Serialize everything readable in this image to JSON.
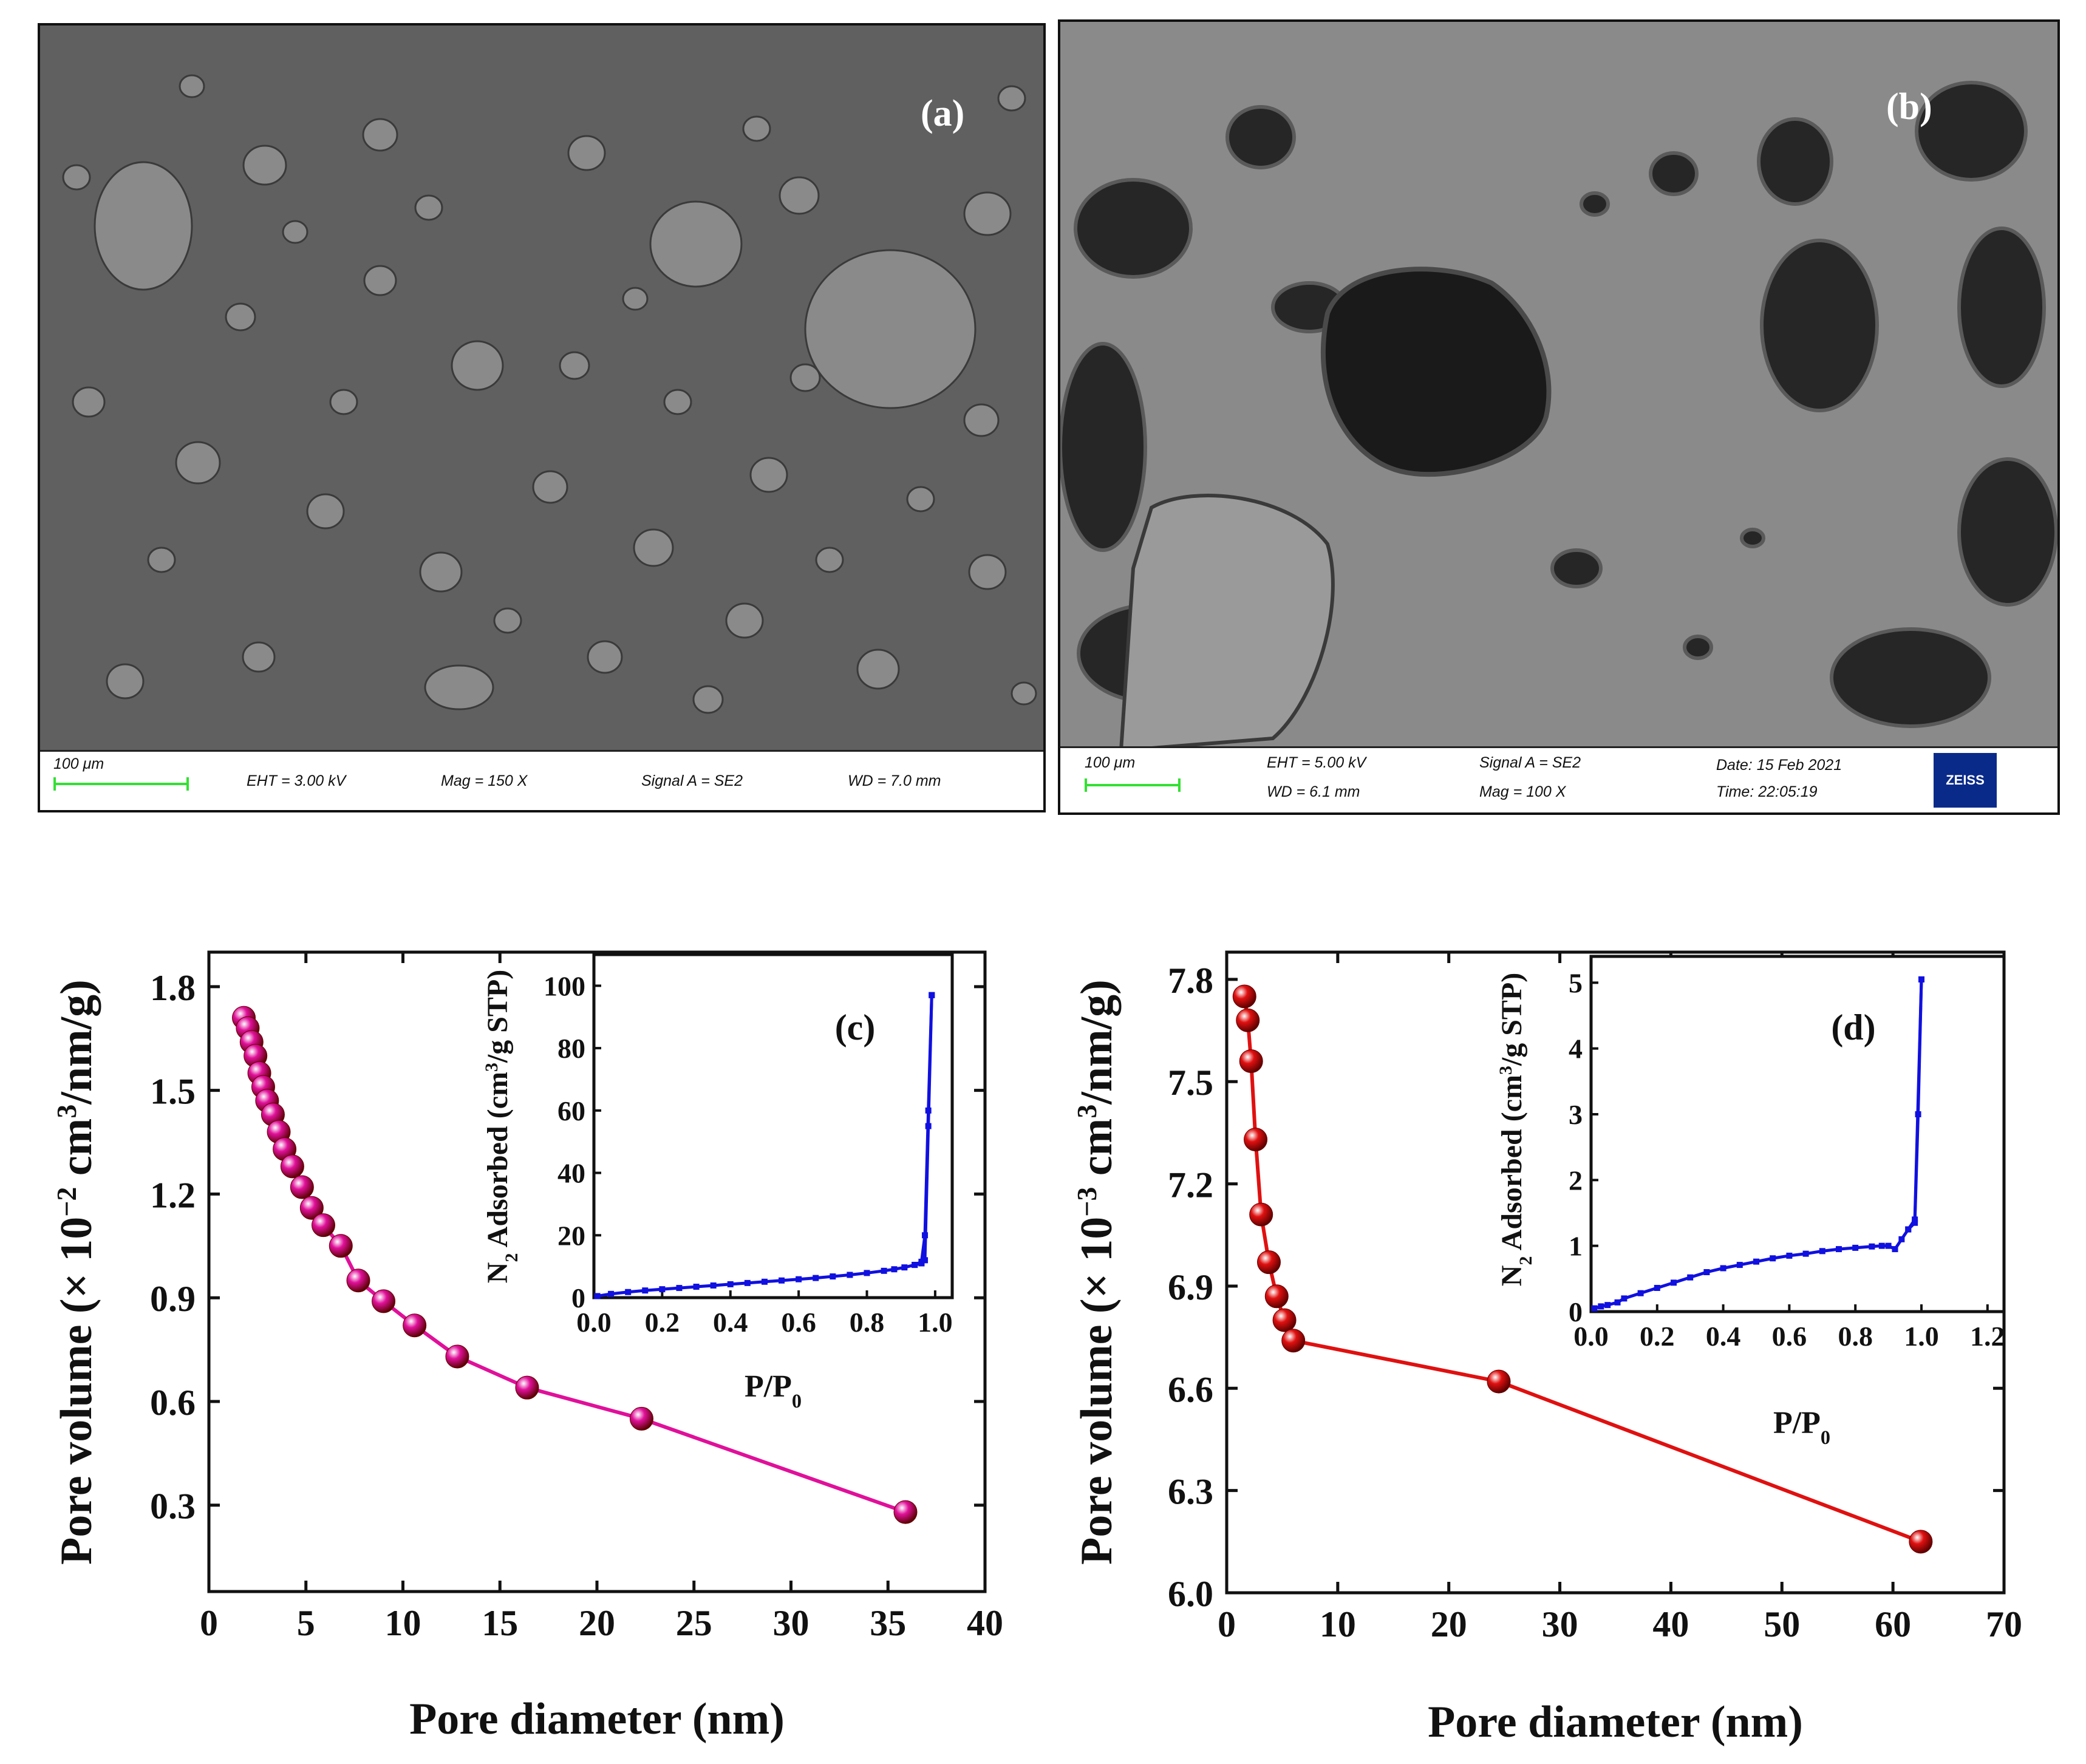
{
  "sem_a": {
    "label": "(a)",
    "scale_text": "100 μm",
    "eht": "EHT =  3.00 kV",
    "mag": "Mag =    150 X",
    "signal": "Signal A = SE2",
    "wd": "WD =  7.0 mm"
  },
  "sem_b": {
    "label": "(b)",
    "scale_text": "100 μm",
    "eht": "EHT =  5.00 kV",
    "wd": "WD =  6.1 mm",
    "signal": "Signal A = SE2",
    "mag": "Mag =      100 X",
    "date": "Date: 15 Feb 2021",
    "time": "Time: 22:05:19",
    "logo": "ZEISS"
  },
  "colors": {
    "series_c": "#e0109a",
    "series_d": "#e01010",
    "inset": "#1010e0"
  },
  "chart_data": [
    {
      "panel": "c",
      "type": "line",
      "label": "(c)",
      "xlabel": "Pore diameter (nm)",
      "ylabel": "Pore volume (× 10⁻² cm³/nm/g)",
      "xlim": [
        0,
        40
      ],
      "ylim": [
        0.05,
        1.9
      ],
      "xticks": [
        0,
        5,
        10,
        15,
        20,
        25,
        30,
        35,
        40
      ],
      "yticks": [
        0.3,
        0.6,
        0.9,
        1.2,
        1.5,
        1.8
      ],
      "ytick_labels": [
        "0.3",
        "0.6",
        "0.9",
        "1.2",
        "1.5",
        "1.8"
      ],
      "marker": "sphere",
      "x": [
        1.8,
        2.0,
        2.2,
        2.4,
        2.6,
        2.8,
        3.0,
        3.3,
        3.6,
        3.9,
        4.3,
        4.8,
        5.3,
        5.9,
        6.8,
        7.7,
        9.0,
        10.6,
        12.8,
        16.4,
        22.3,
        35.9
      ],
      "y": [
        1.71,
        1.68,
        1.64,
        1.6,
        1.55,
        1.51,
        1.47,
        1.43,
        1.38,
        1.33,
        1.28,
        1.22,
        1.16,
        1.11,
        1.05,
        0.95,
        0.89,
        0.82,
        0.73,
        0.64,
        0.55,
        0.28
      ],
      "inset": {
        "type": "line",
        "xlabel": "P/P₀",
        "ylabel": "N₂ Adsorbed (cm³/g STP)",
        "xlim": [
          0.0,
          1.05
        ],
        "ylim": [
          0,
          110
        ],
        "xticks": [
          0.0,
          0.2,
          0.4,
          0.6,
          0.8,
          1.0
        ],
        "xtick_labels": [
          "0.0",
          "0.2",
          "0.4",
          "0.6",
          "0.8",
          "1.0"
        ],
        "yticks": [
          0,
          20,
          40,
          60,
          80,
          100
        ],
        "ytick_labels": [
          "0",
          "20",
          "40",
          "60",
          "80",
          "100"
        ],
        "series": [
          {
            "x": [
              0.01,
              0.05,
              0.1,
              0.15,
              0.2,
              0.25,
              0.3,
              0.35,
              0.4,
              0.45,
              0.5,
              0.55,
              0.6,
              0.65,
              0.7,
              0.75,
              0.8,
              0.85,
              0.88,
              0.91,
              0.94,
              0.96,
              0.97,
              0.98,
              0.99
            ],
            "y": [
              0.5,
              1.2,
              1.8,
              2.3,
              2.7,
              3.1,
              3.5,
              3.9,
              4.3,
              4.7,
              5.1,
              5.5,
              5.9,
              6.3,
              6.8,
              7.3,
              7.9,
              8.6,
              9.1,
              9.7,
              10.5,
              11.5,
              20,
              60,
              97
            ]
          },
          {
            "x": [
              0.99,
              0.98,
              0.97,
              0.96,
              0.94
            ],
            "y": [
              97,
              55,
              12,
              11,
              10.5
            ]
          }
        ]
      }
    },
    {
      "panel": "d",
      "type": "line",
      "label": "(d)",
      "xlabel": "Pore diameter (nm)",
      "ylabel": "Pore volume (× 10⁻³ cm³/nm/g)",
      "xlim": [
        0,
        70
      ],
      "ylim": [
        6.0,
        7.88
      ],
      "xticks": [
        0,
        10,
        20,
        30,
        40,
        50,
        60,
        70
      ],
      "yticks": [
        6.0,
        6.3,
        6.6,
        6.9,
        7.2,
        7.5,
        7.8
      ],
      "ytick_labels": [
        "6.0",
        "6.3",
        "6.6",
        "6.9",
        "7.2",
        "7.5",
        "7.8"
      ],
      "marker": "sphere",
      "x": [
        1.6,
        1.9,
        2.2,
        2.6,
        3.1,
        3.8,
        4.5,
        5.2,
        6.0,
        24.5,
        62.5
      ],
      "y": [
        7.75,
        7.68,
        7.56,
        7.33,
        7.11,
        6.97,
        6.87,
        6.8,
        6.74,
        6.62,
        6.15
      ],
      "inset": {
        "type": "line",
        "xlabel": "P/P₀",
        "ylabel": "N₂ Adsorbed (cm³/g STP)",
        "xlim": [
          0.0,
          1.25
        ],
        "ylim": [
          0,
          5.4
        ],
        "xticks": [
          0.0,
          0.2,
          0.4,
          0.6,
          0.8,
          1.0,
          1.2
        ],
        "xtick_labels": [
          "0.0",
          "0.2",
          "0.4",
          "0.6",
          "0.8",
          "1.0",
          "1.2"
        ],
        "yticks": [
          0,
          1,
          2,
          3,
          4,
          5
        ],
        "ytick_labels": [
          "0",
          "1",
          "2",
          "3",
          "4",
          "5"
        ],
        "series": [
          {
            "x": [
              0.01,
              0.03,
              0.05,
              0.08,
              0.1,
              0.15,
              0.2,
              0.25,
              0.3,
              0.35,
              0.4,
              0.45,
              0.5,
              0.55,
              0.6,
              0.65,
              0.7,
              0.75,
              0.8,
              0.85,
              0.88,
              0.9,
              0.92,
              0.94,
              0.96,
              0.98,
              1.0
            ],
            "y": [
              0.05,
              0.08,
              0.1,
              0.14,
              0.2,
              0.28,
              0.36,
              0.44,
              0.52,
              0.6,
              0.66,
              0.71,
              0.76,
              0.81,
              0.85,
              0.88,
              0.92,
              0.95,
              0.97,
              0.99,
              1.0,
              1.0,
              0.95,
              1.1,
              1.25,
              1.4,
              5.05
            ]
          },
          {
            "x": [
              1.0,
              0.99,
              0.98,
              0.96
            ],
            "y": [
              5.05,
              3.0,
              1.35,
              1.25
            ]
          }
        ]
      }
    }
  ]
}
